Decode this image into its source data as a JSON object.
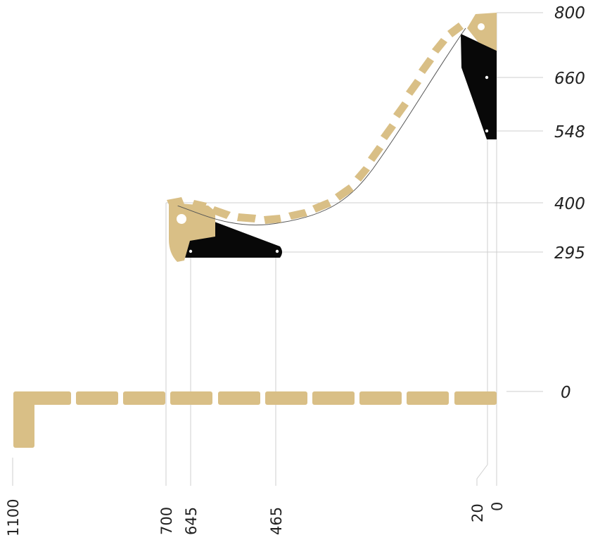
{
  "y_axis_labels": [
    "800",
    "660",
    "548",
    "400",
    "295",
    "0"
  ],
  "x_axis_labels": [
    "1100",
    "700",
    "645",
    "465",
    "20",
    "0"
  ],
  "colors": {
    "wood": "#d9bf86",
    "metal": "#080808",
    "guide": "#cfcfcf",
    "text": "#222222"
  }
}
